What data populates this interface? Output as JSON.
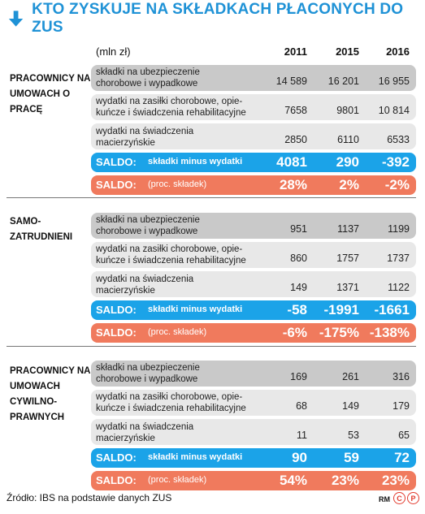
{
  "title": "KTO ZYSKUJE NA SKŁADKACH PŁACONYCH DO ZUS",
  "unit": "(mln zł)",
  "years": [
    "2011",
    "2015",
    "2016"
  ],
  "groups": [
    {
      "label": "PRACOWNICY NA UMOWACH O PRACĘ",
      "rows": [
        {
          "label": "składki na ubezpieczenie chorobowe i wypadkowe",
          "values": [
            "14 589",
            "16 201",
            "16 955"
          ]
        },
        {
          "label": "wydatki na zasiłki chorobowe, opie-kuńcze i świadczenia rehabilitacyjne",
          "values": [
            "7658",
            "9801",
            "10 814"
          ]
        },
        {
          "label": "wydatki na świadczenia macierzyńskie",
          "values": [
            "2850",
            "6110",
            "6533"
          ]
        }
      ],
      "saldo": {
        "label": "SALDO:",
        "sub": "składki minus wydatki",
        "values": [
          "4081",
          "290",
          "-392"
        ]
      },
      "saldo_pct": {
        "label": "SALDO:",
        "sub": "(proc. składek)",
        "values": [
          "28%",
          "2%",
          "-2%"
        ]
      }
    },
    {
      "label": "SAMO-ZATRUDNIENI",
      "rows": [
        {
          "label": "składki na ubezpieczenie chorobowe i wypadkowe",
          "values": [
            "951",
            "1137",
            "1199"
          ]
        },
        {
          "label": "wydatki na zasiłki chorobowe, opie-kuńcze i świadczenia rehabilitacyjne",
          "values": [
            "860",
            "1757",
            "1737"
          ]
        },
        {
          "label": "wydatki na świadczenia macierzyńskie",
          "values": [
            "149",
            "1371",
            "1122"
          ]
        }
      ],
      "saldo": {
        "label": "SALDO:",
        "sub": "składki minus wydatki",
        "values": [
          "-58",
          "-1991",
          "-1661"
        ]
      },
      "saldo_pct": {
        "label": "SALDO:",
        "sub": "(proc. składek)",
        "values": [
          "-6%",
          "-175%",
          "-138%"
        ]
      }
    },
    {
      "label": "PRACOWNICY NA UMOWACH CYWILNO-PRAWNYCH",
      "rows": [
        {
          "label": "składki na ubezpieczenie chorobowe i wypadkowe",
          "values": [
            "169",
            "261",
            "316"
          ]
        },
        {
          "label": "wydatki na zasiłki chorobowe, opie-kuńcze i świadczenia rehabilitacyjne",
          "values": [
            "68",
            "149",
            "179"
          ]
        },
        {
          "label": "wydatki na świadczenia macierzyńskie",
          "values": [
            "11",
            "53",
            "65"
          ]
        }
      ],
      "saldo": {
        "label": "SALDO:",
        "sub": "składki minus wydatki",
        "values": [
          "90",
          "59",
          "72"
        ]
      },
      "saldo_pct": {
        "label": "SALDO:",
        "sub": "(proc. składek)",
        "values": [
          "54%",
          "23%",
          "23%"
        ]
      }
    }
  ],
  "source": "Źródło: IBS na podstawie danych ZUS",
  "credit": "RM",
  "credit_marks": [
    "C",
    "P"
  ],
  "colors": {
    "title": "#1f92d6",
    "saldo": "#1ba3e8",
    "saldo_pct": "#f07a5d",
    "row_dark": "#c9c9c9",
    "row_light": "#e8e8e8",
    "cp_mark": "#e23b2e"
  },
  "icons": {
    "title": "arrow-down-icon"
  }
}
